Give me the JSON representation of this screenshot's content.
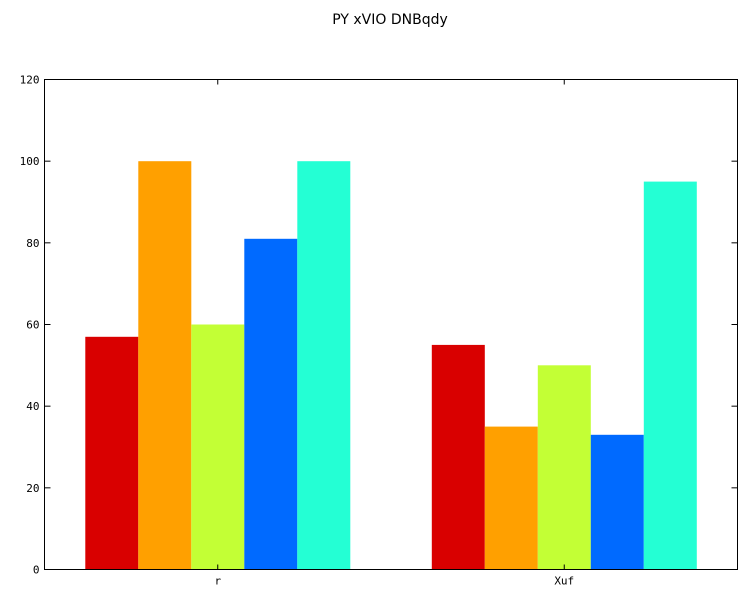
{
  "chart_data": {
    "type": "bar",
    "title": "PY xVIO DNBqdy",
    "xlabel": "",
    "ylabel": "",
    "categories": [
      "r",
      "Xuf"
    ],
    "ylim": [
      0,
      120
    ],
    "yticks": [
      0,
      20,
      40,
      60,
      80,
      100,
      120
    ],
    "grid": false,
    "legend": "none",
    "series": [
      {
        "color": "#d90000",
        "values": [
          57,
          55
        ]
      },
      {
        "color": "#ffa000",
        "values": [
          100,
          35
        ]
      },
      {
        "color": "#c3ff35",
        "values": [
          60,
          50
        ]
      },
      {
        "color": "#006aff",
        "values": [
          81,
          33
        ]
      },
      {
        "color": "#24ffd4",
        "values": [
          100,
          95
        ]
      }
    ]
  }
}
